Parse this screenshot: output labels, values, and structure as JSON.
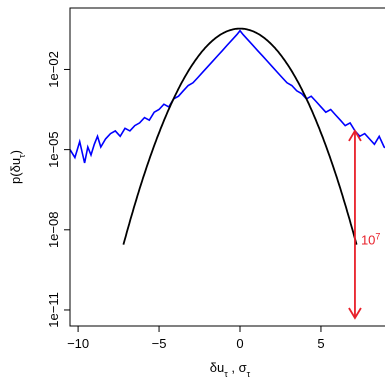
{
  "chart_data": {
    "type": "line",
    "xlabel": "δu",
    "xlabel_sub_1": "τ",
    "xlabel_sep": " , σ",
    "xlabel_sub_2": "τ",
    "ylabel": "p(δu",
    "ylabel_sub": "τ",
    "ylabel_end": ")",
    "x_ticks": [
      -10,
      -5,
      0,
      5,
      10
    ],
    "x_tick_labels": [
      "−10",
      "−5",
      "0",
      "5",
      "10"
    ],
    "y_ticks": [
      -2,
      -5,
      -8,
      -11
    ],
    "y_tick_labels": [
      "1e−02",
      "1e−05",
      "1e−08",
      "1e−11"
    ],
    "y_scale": "log10",
    "xlim": [
      -10.5,
      10.5
    ],
    "ylim_log10": [
      -11.6,
      0.3
    ],
    "series": [
      {
        "color": "#0000ff",
        "x": [
          -10.5,
          -10.2,
          -9.9,
          -9.6,
          -9.4,
          -9.2,
          -9.0,
          -8.8,
          -8.6,
          -8.3,
          -8.0,
          -7.7,
          -7.4,
          -7.1,
          -6.8,
          -6.5,
          -6.2,
          -5.9,
          -5.6,
          -5.3,
          -5.0,
          -4.7,
          -4.4,
          -4.1,
          -3.8,
          -3.5,
          -3.2,
          -2.9,
          -2.6,
          -2.3,
          -2.0,
          -1.7,
          -1.4,
          -1.1,
          -0.8,
          -0.5,
          -0.2,
          0.0,
          0.2,
          0.5,
          0.8,
          1.1,
          1.4,
          1.7,
          2.0,
          2.3,
          2.6,
          2.9,
          3.2,
          3.5,
          3.8,
          4.1,
          4.4,
          4.7,
          5.0,
          5.3,
          5.6,
          5.9,
          6.2,
          6.5,
          6.8,
          7.1,
          7.4,
          7.7,
          8.0,
          8.3,
          8.6,
          8.9,
          9.2,
          9.5,
          9.8,
          10.1,
          10.5
        ],
        "log10_y": [
          -5.0,
          -5.3,
          -4.7,
          -5.5,
          -4.9,
          -5.2,
          -4.8,
          -4.5,
          -4.9,
          -4.6,
          -4.4,
          -4.3,
          -4.5,
          -4.2,
          -4.3,
          -4.1,
          -4.0,
          -3.8,
          -3.9,
          -3.6,
          -3.5,
          -3.3,
          -3.4,
          -3.1,
          -3.0,
          -2.8,
          -2.6,
          -2.5,
          -2.3,
          -2.1,
          -1.9,
          -1.7,
          -1.5,
          -1.3,
          -1.1,
          -0.9,
          -0.7,
          -0.55,
          -0.7,
          -0.9,
          -1.1,
          -1.3,
          -1.5,
          -1.7,
          -1.9,
          -2.1,
          -2.3,
          -2.5,
          -2.6,
          -2.8,
          -2.9,
          -3.1,
          -3.0,
          -3.2,
          -3.4,
          -3.6,
          -3.5,
          -3.7,
          -3.9,
          -4.1,
          -4.0,
          -4.3,
          -4.5,
          -4.4,
          -4.6,
          -4.8,
          -4.5,
          -4.9,
          -5.0,
          -4.7,
          -5.1,
          -4.9,
          -5.0
        ]
      },
      {
        "color": "#000000",
        "type": "gaussian",
        "sigma": 1.18,
        "x_range": [
          -7.2,
          7.2
        ]
      }
    ],
    "annotation": {
      "text": "10",
      "superscript": "7",
      "color": "#e8202a",
      "x": 7.1,
      "log10_y_top": -4.3,
      "log10_y_bottom": -11.3
    },
    "grid": false
  }
}
